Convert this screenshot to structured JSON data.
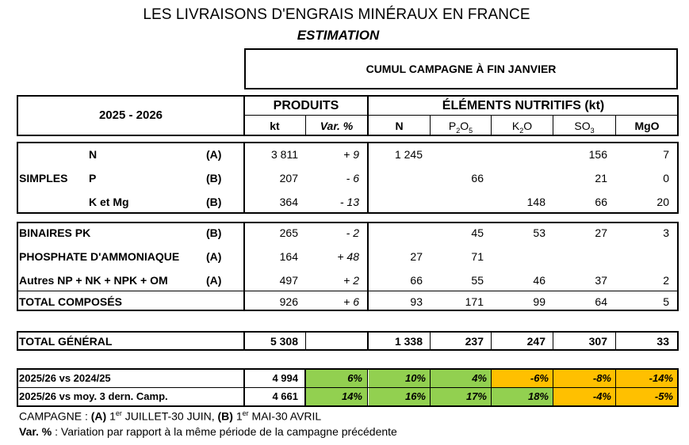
{
  "title": "LES LIVRAISONS D'ENGRAIS MINÉRAUX EN FRANCE",
  "subtitle": "ESTIMATION",
  "cumul_header": "CUMUL CAMPAGNE À FIN JANVIER",
  "period": "2025 - 2026",
  "produits_header": "PRODUITS",
  "elements_header": "ÉLÉMENTS NUTRITIFS (kt)",
  "col_kt": "kt",
  "col_var": "Var. %",
  "col_n": "N",
  "col_p2o5": {
    "base": "P",
    "sub1": "2",
    "mid": "O",
    "sub2": "5"
  },
  "col_k2o": {
    "base": "K",
    "sub1": "2",
    "mid": "O"
  },
  "col_so3": {
    "base": "SO",
    "sub1": "3"
  },
  "col_mgo": "MgO",
  "simples_label": "SIMPLES",
  "rows": [
    {
      "label": "N",
      "camp": "(A)",
      "kt": "3 811",
      "var": "+ 9",
      "n": "1 245",
      "p2o5": "",
      "k2o": "",
      "so3": "156",
      "mgo": "7"
    },
    {
      "label": "P",
      "camp": "(B)",
      "kt": "207",
      "var": "- 6",
      "n": "",
      "p2o5": "66",
      "k2o": "",
      "so3": "21",
      "mgo": "0"
    },
    {
      "label": "K et Mg",
      "camp": "(B)",
      "kt": "364",
      "var": "- 13",
      "n": "",
      "p2o5": "",
      "k2o": "148",
      "so3": "66",
      "mgo": "20"
    },
    {
      "label": "BINAIRES PK",
      "camp": "(B)",
      "kt": "265",
      "var": "- 2",
      "n": "",
      "p2o5": "45",
      "k2o": "53",
      "so3": "27",
      "mgo": "3"
    },
    {
      "label": "PHOSPHATE D'AMMONIAQUE",
      "camp": "(A)",
      "kt": "164",
      "var": "+ 48",
      "n": "27",
      "p2o5": "71",
      "k2o": "",
      "so3": "",
      "mgo": ""
    },
    {
      "label": "Autres NP + NK + NPK + OM",
      "camp": "(A)",
      "kt": "497",
      "var": "+ 2",
      "n": "66",
      "p2o5": "55",
      "k2o": "46",
      "so3": "37",
      "mgo": "2"
    },
    {
      "label": "TOTAL COMPOSÉS",
      "camp": "",
      "kt": "926",
      "var": "+ 6",
      "n": "93",
      "p2o5": "171",
      "k2o": "99",
      "so3": "64",
      "mgo": "5"
    }
  ],
  "total": {
    "label": "TOTAL GÉNÉRAL",
    "kt": "5 308",
    "n": "1 338",
    "p2o5": "237",
    "k2o": "247",
    "so3": "307",
    "mgo": "33"
  },
  "comparisons": [
    {
      "label": "2025/26 vs 2024/25",
      "kt": "4 994",
      "var": "6%",
      "n": "10%",
      "p2o5": "4%",
      "k2o": "-6%",
      "so3": "-8%",
      "mgo": "-14%"
    },
    {
      "label": "2025/26 vs moy. 3 dern. Camp.",
      "kt": "4 661",
      "var": "14%",
      "n": "16%",
      "p2o5": "17%",
      "k2o": "18%",
      "so3": "-4%",
      "mgo": "-5%"
    }
  ],
  "colors": {
    "positive": "#92d050",
    "negative": "#ffc000"
  },
  "footnote1": {
    "prefix": "CAMPAGNE : ",
    "a": "(A)",
    "a_num": " 1",
    "a_sup": "er",
    "a_text": " JUILLET-30 JUIN, ",
    "b": "(B)",
    "b_num": " 1",
    "b_sup": "er",
    "b_text": " MAI-30 AVRIL"
  },
  "footnote2": {
    "bold": "Var. %",
    "text": " : Variation par rapport à la même période de la campagne précédente"
  }
}
